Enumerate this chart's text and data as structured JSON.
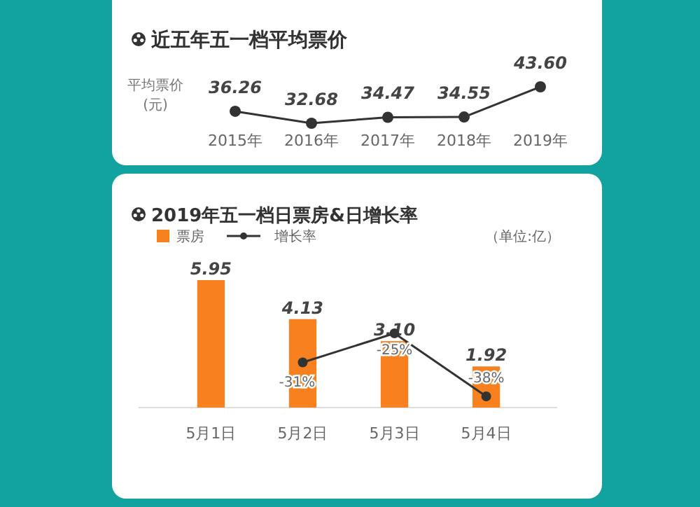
{
  "chart_data": [
    {
      "type": "line",
      "title": "近五年五一档平均票价",
      "ylabel": "平均票价(元)",
      "categories": [
        "2015年",
        "2016年",
        "2017年",
        "2018年",
        "2019年"
      ],
      "series": [
        {
          "color": "#333333",
          "values": [
            36.26,
            32.68,
            34.47,
            34.55,
            43.6
          ],
          "value_labels": [
            "36.26",
            "32.68",
            "34.47",
            "34.55",
            "43.60"
          ]
        }
      ],
      "marker": "circle"
    },
    {
      "type": "bar",
      "title": "2019年五一档日票房&日增长率",
      "categories": [
        "5月1日",
        "5月2日",
        "5月3日",
        "5月4日"
      ],
      "annotations": [
        "（单位:亿）"
      ],
      "legend": "top left",
      "marker": "circle",
      "series": [
        {
          "name": "票房",
          "color": "#f7801f",
          "values": [
            5.95,
            4.13,
            3.1,
            1.92
          ],
          "value_labels": [
            "5.95",
            "4.13",
            "3.10",
            "1.92"
          ]
        },
        {
          "name": "增长率",
          "type": "line",
          "axis": "y2",
          "color": "#333333",
          "values": [
            null,
            -31,
            -25,
            -38
          ],
          "value_labels": [
            null,
            "-31%",
            "-25%",
            "-38%"
          ]
        }
      ]
    }
  ]
}
